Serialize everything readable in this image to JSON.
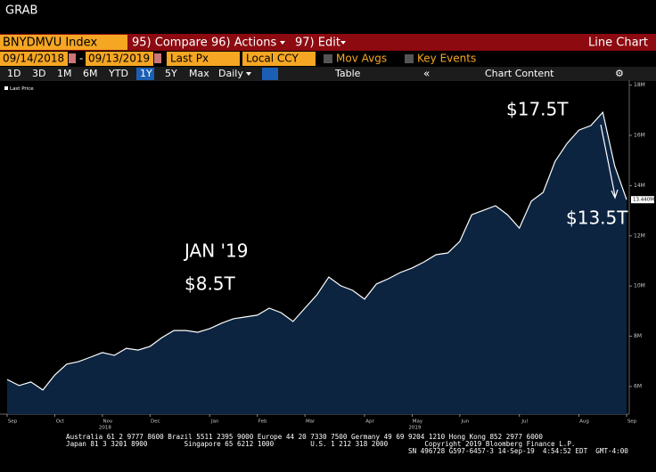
{
  "header": {
    "title": "GRAB"
  },
  "toolbar": {
    "ticker": "BNYDMVU Index",
    "compare": "95) Compare",
    "actions": "96) Actions",
    "edit": "97) Edit",
    "view": "Line Chart",
    "start_date": "09/14/2018",
    "end_date": "09/13/2019",
    "field": "Last Px",
    "currency": "Local CCY",
    "mov_avgs": "Mov Avgs",
    "key_events": "Key Events",
    "ranges": [
      "1D",
      "3D",
      "1M",
      "6M",
      "YTD",
      "1Y",
      "5Y",
      "Max"
    ],
    "frequency": "Daily",
    "table": "Table",
    "chart_content": "Chart Content"
  },
  "chart_data": {
    "type": "area",
    "categories": [
      "Sep",
      null,
      null,
      null,
      "Oct",
      null,
      null,
      null,
      "Nov",
      null,
      null,
      null,
      "Dec",
      null,
      null,
      null,
      null,
      "Jan",
      null,
      null,
      null,
      "Feb",
      null,
      null,
      null,
      "Mar",
      null,
      null,
      null,
      null,
      "Apr",
      null,
      null,
      null,
      "May",
      null,
      null,
      null,
      "Jun",
      null,
      null,
      null,
      null,
      "Jul",
      null,
      null,
      null,
      null,
      "Aug",
      null,
      null,
      null,
      "Sep"
    ],
    "year_labels": [
      null,
      null,
      null,
      null,
      null,
      null,
      null,
      null,
      "2018",
      null,
      null,
      null,
      null,
      null,
      null,
      null,
      null,
      null,
      null,
      null,
      null,
      null,
      null,
      null,
      null,
      null,
      null,
      null,
      null,
      null,
      null,
      null,
      null,
      null,
      "2019",
      null,
      null,
      null,
      null,
      null,
      null,
      null,
      null,
      null,
      null,
      null,
      null,
      null,
      null,
      null,
      null,
      null,
      null
    ],
    "series": [
      {
        "name": "Last Price",
        "color": "#ffffff",
        "fill": "#0c2440",
        "values": [
          6.28,
          6.04,
          6.18,
          5.86,
          6.46,
          6.89,
          6.99,
          7.17,
          7.35,
          7.24,
          7.52,
          7.45,
          7.6,
          7.95,
          8.23,
          8.23,
          8.16,
          8.3,
          8.52,
          8.7,
          8.77,
          8.84,
          9.12,
          8.94,
          8.59,
          9.12,
          9.65,
          10.36,
          10.01,
          9.83,
          9.48,
          10.08,
          10.29,
          10.54,
          10.72,
          10.96,
          11.25,
          11.32,
          11.78,
          12.84,
          13.02,
          13.2,
          12.84,
          12.31,
          13.38,
          13.73,
          14.97,
          15.68,
          16.21,
          16.39,
          16.92,
          14.79,
          13.44
        ],
        "value_labels": [
          null,
          null,
          null,
          null,
          null,
          null,
          null,
          null,
          null,
          null,
          null,
          null,
          null,
          null,
          null,
          null,
          null,
          null,
          null,
          null,
          null,
          null,
          null,
          null,
          null,
          null,
          null,
          null,
          null,
          null,
          null,
          null,
          null,
          null,
          null,
          null,
          null,
          null,
          null,
          null,
          null,
          null,
          null,
          null,
          null,
          null,
          null,
          null,
          null,
          null,
          null,
          null,
          "13.440M"
        ]
      }
    ],
    "ylim": [
      4.9,
      18.2
    ],
    "yticks": [
      {
        "value": 6,
        "label": "6M"
      },
      {
        "value": 8,
        "label": "8M"
      },
      {
        "value": 10,
        "label": "10M"
      },
      {
        "value": 12,
        "label": "12M"
      },
      {
        "value": 14,
        "label": "14M"
      },
      {
        "value": 16,
        "label": "16M"
      },
      {
        "value": 18,
        "label": "18M"
      }
    ],
    "annotations": [
      "JAN '19",
      "$8.5T",
      "$17.5T",
      "$13.5T"
    ]
  },
  "footer": {
    "lines": [
      "Australia 61 2 9777 8600 Brazil 5511 2395 9000 Europe 44 20 7330 7500 Germany 49 69 9204 1210 Hong Kong 852 2977 6000",
      "Japan 81 3 3201 8900         Singapore 65 6212 1000         U.S. 1 212 318 2000         Copyright 2019 Bloomberg Finance L.P.",
      "SN 496728 G597-6457-3 14-Sep-19  4:54:52 EDT  GMT-4:00"
    ]
  }
}
